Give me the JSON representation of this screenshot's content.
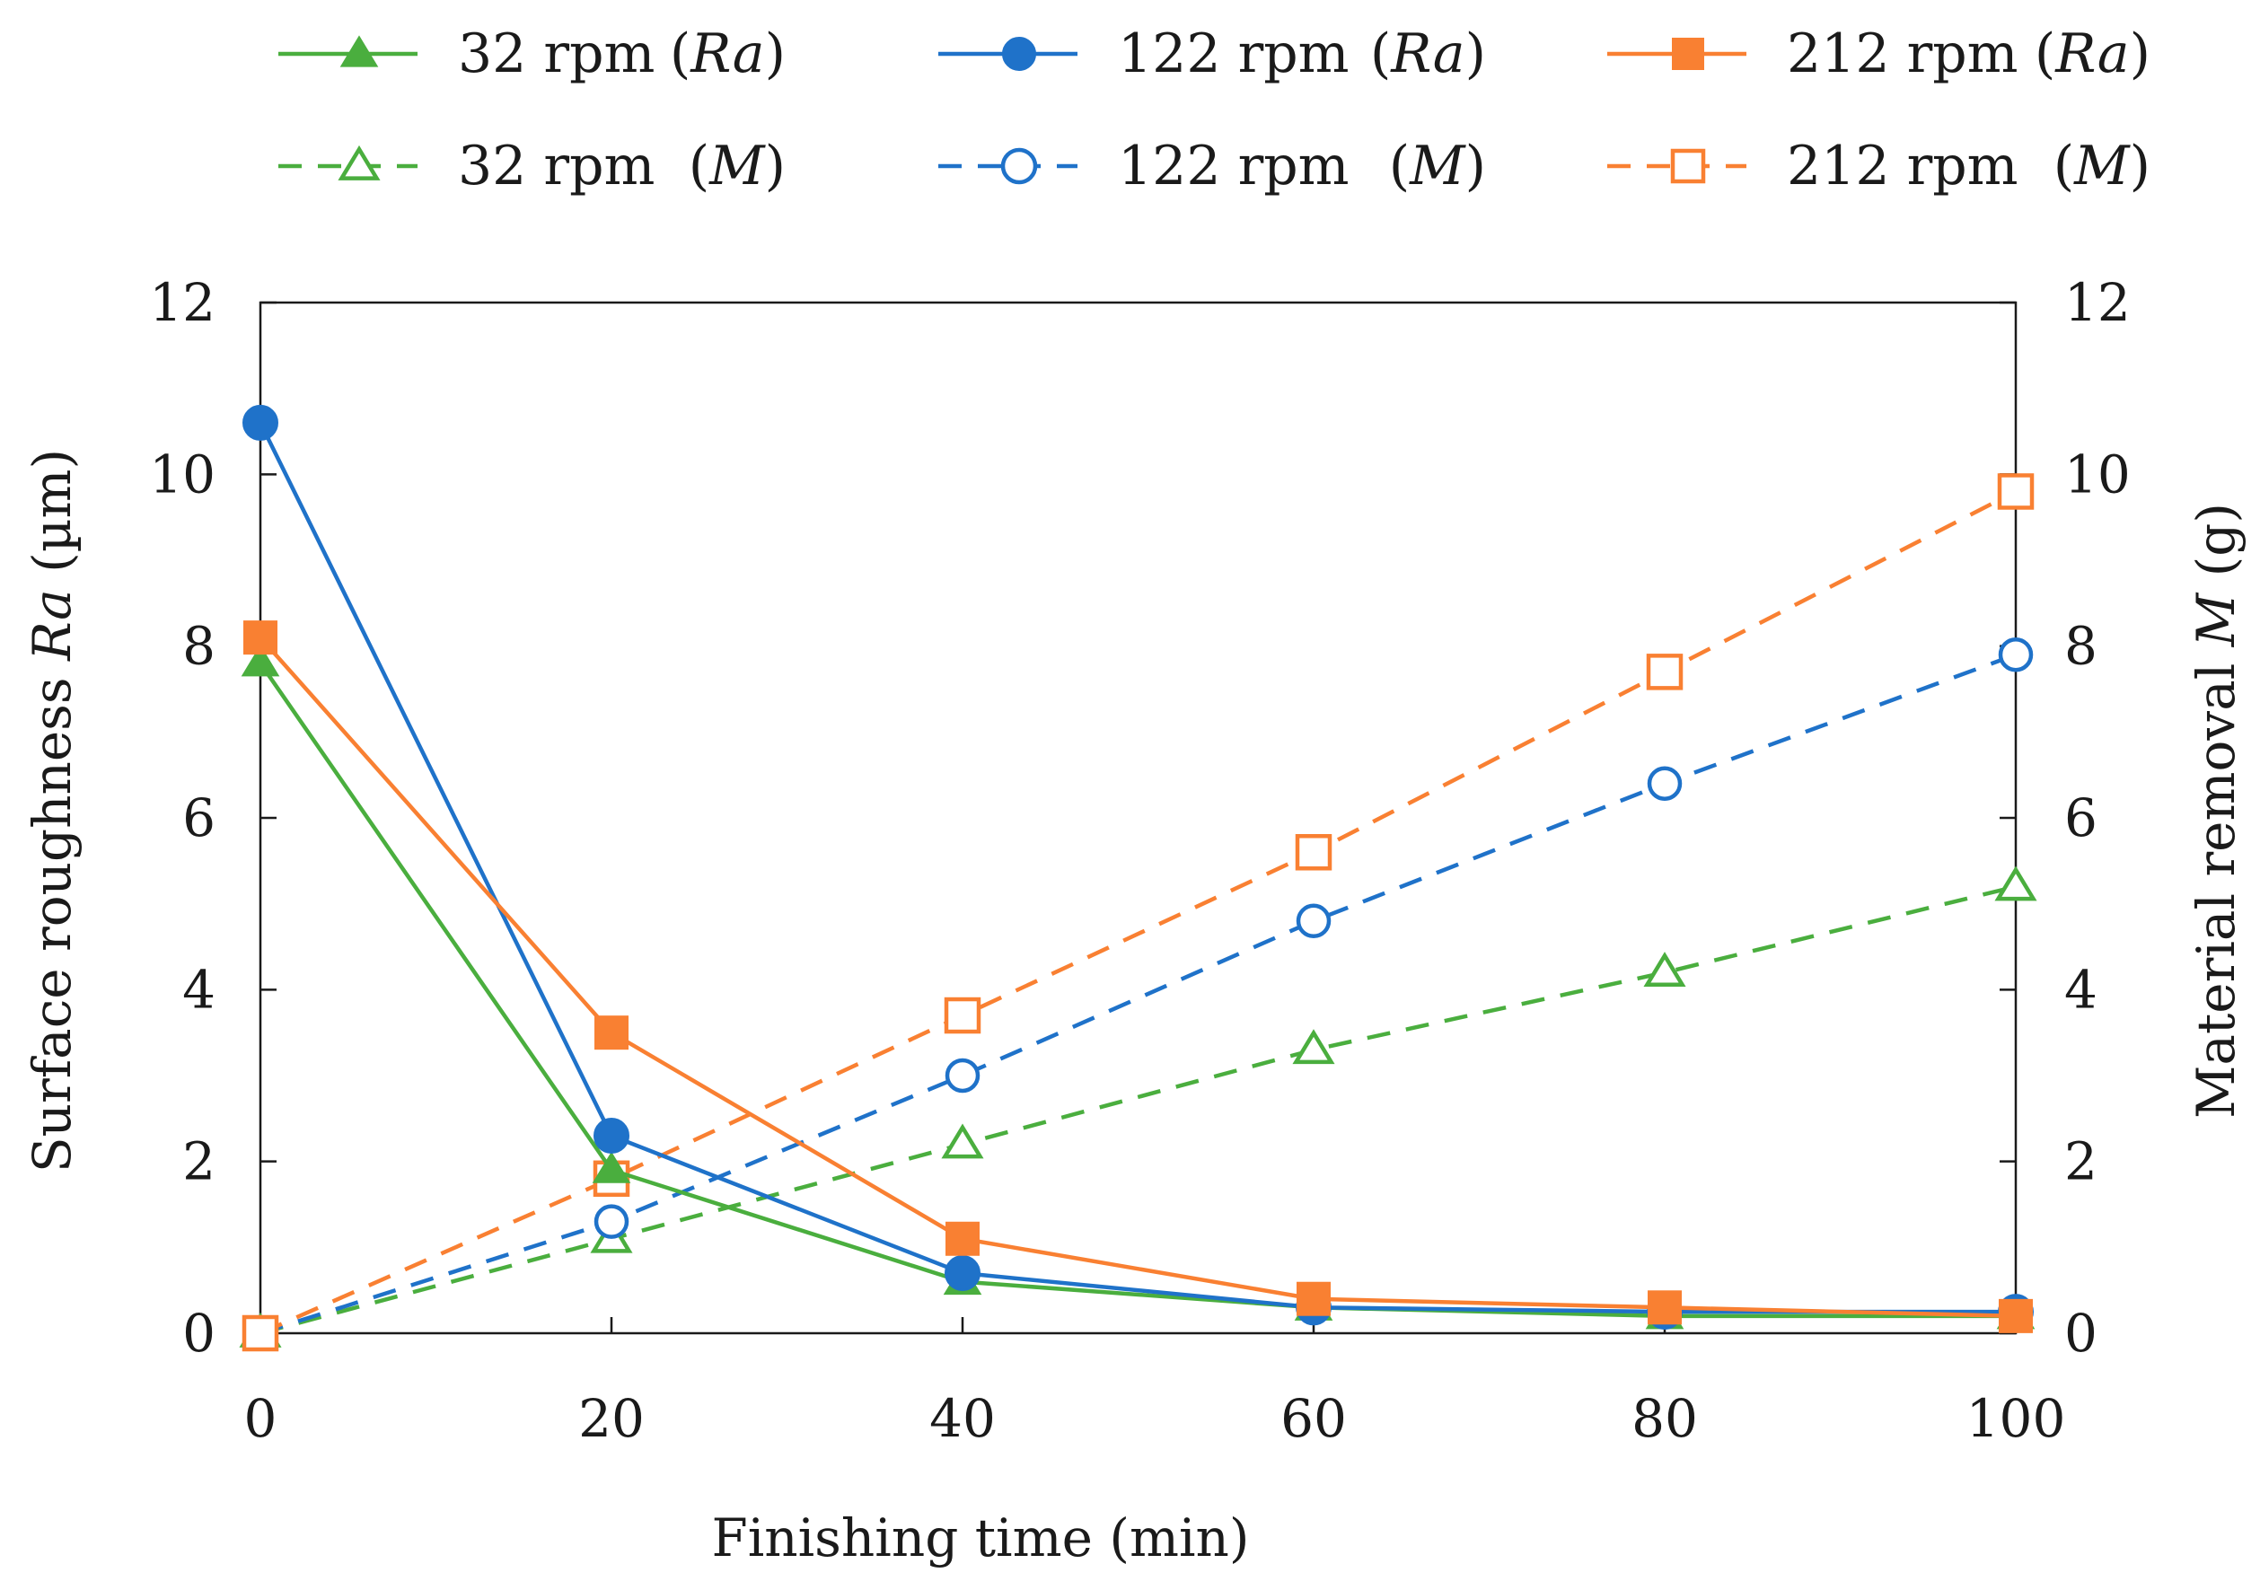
{
  "chart_data": {
    "type": "line",
    "x": [
      0,
      20,
      40,
      60,
      80,
      100
    ],
    "xlabel": "Finishing time (min)",
    "xlim": [
      0,
      100
    ],
    "xticks": [
      "0",
      "20",
      "40",
      "60",
      "80",
      "100"
    ],
    "ylabel_left": {
      "prefix": "Surface roughness ",
      "var": "Ra",
      "suffix": " (µm)"
    },
    "ylabel_right": {
      "prefix": "Material removal ",
      "var": "M",
      "suffix": " (g)"
    },
    "ylim": [
      0,
      12
    ],
    "yticks": [
      "0",
      "2",
      "4",
      "6",
      "8",
      "10",
      "12"
    ],
    "grid": false,
    "legend_position": "top",
    "series": [
      {
        "id": "ra32",
        "name": "32 rpm",
        "qty": "Ra",
        "color": "#4aae3e",
        "marker": "triangle",
        "filled": true,
        "dashed": false,
        "axis": "left",
        "values": [
          7.8,
          1.9,
          0.6,
          0.3,
          0.2,
          0.2
        ]
      },
      {
        "id": "ra122",
        "name": "122 rpm",
        "qty": "Ra",
        "color": "#1f72c9",
        "marker": "circle",
        "filled": true,
        "dashed": false,
        "axis": "left",
        "values": [
          10.6,
          2.3,
          0.7,
          0.3,
          0.25,
          0.25
        ]
      },
      {
        "id": "ra212",
        "name": "212 rpm",
        "qty": "Ra",
        "color": "#f98032",
        "marker": "square",
        "filled": true,
        "dashed": false,
        "axis": "left",
        "values": [
          8.1,
          3.5,
          1.1,
          0.4,
          0.3,
          0.2
        ]
      },
      {
        "id": "m32",
        "name": "32 rpm",
        "qty": "M",
        "color": "#4aae3e",
        "marker": "triangle",
        "filled": false,
        "dashed": true,
        "axis": "right",
        "values": [
          0,
          1.1,
          2.2,
          3.3,
          4.2,
          5.2
        ]
      },
      {
        "id": "m122",
        "name": "122 rpm",
        "qty": "M",
        "color": "#1f72c9",
        "marker": "circle",
        "filled": false,
        "dashed": true,
        "axis": "right",
        "values": [
          0,
          1.3,
          3.0,
          4.8,
          6.4,
          7.9
        ]
      },
      {
        "id": "m212",
        "name": "212 rpm",
        "qty": "M",
        "color": "#f98032",
        "marker": "square",
        "filled": false,
        "dashed": true,
        "axis": "right",
        "values": [
          0,
          1.8,
          3.7,
          5.6,
          7.7,
          9.8
        ]
      }
    ]
  }
}
